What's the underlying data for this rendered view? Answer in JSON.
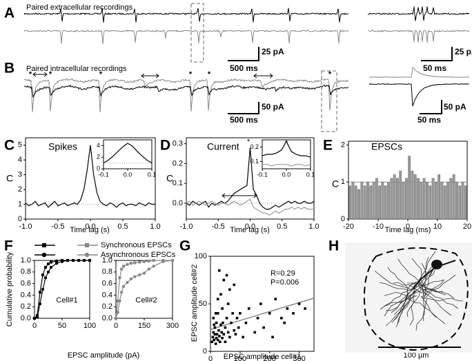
{
  "panels": [
    "A",
    "B",
    "C",
    "D",
    "E",
    "F",
    "G",
    "H"
  ],
  "recordings": [
    {
      "title": "Paired extracellular reccordings",
      "scale_main": [
        "25 pA",
        "500 ms"
      ],
      "scale_inset": [
        "25 pA",
        "50 ms"
      ]
    },
    {
      "title": "Paired intracellular recordings",
      "event_label": "*",
      "scale_main": [
        "50 pA",
        "500 ms"
      ],
      "scale_inset": [
        "50 pA",
        "50 ms"
      ]
    }
  ],
  "image": {
    "scale_bar": "100 µm"
  },
  "legend": [
    {
      "name": "Synchronous EPSCs",
      "marker": "square",
      "colors": [
        "#000000",
        "#888888"
      ]
    },
    {
      "name": "Asynchronous EPSCs",
      "marker": "circle",
      "colors": [
        "#000000",
        "#888888"
      ]
    }
  ],
  "chart_data": [
    {
      "type": "line",
      "title": "Spikes",
      "ylabel": "C",
      "xlabel": "Time lag (s)",
      "x": [
        -1.0,
        -0.95,
        -0.9,
        -0.85,
        -0.8,
        -0.75,
        -0.7,
        -0.65,
        -0.6,
        -0.55,
        -0.5,
        -0.45,
        -0.4,
        -0.35,
        -0.3,
        -0.25,
        -0.2,
        -0.15,
        -0.1,
        -0.05,
        0,
        0.05,
        0.1,
        0.15,
        0.2,
        0.25,
        0.3,
        0.35,
        0.4,
        0.45,
        0.5,
        0.55,
        0.6,
        0.65,
        0.7,
        0.75,
        0.8,
        0.85,
        0.9,
        0.95,
        1.0
      ],
      "series": [
        {
          "color": "#000000",
          "values": [
            1.1,
            0.9,
            1.0,
            1.2,
            0.9,
            1.0,
            1.1,
            0.8,
            1.0,
            1.2,
            0.9,
            1.0,
            1.1,
            0.9,
            1.0,
            1.1,
            1.0,
            1.3,
            2.0,
            3.3,
            5.0,
            3.0,
            1.8,
            1.2,
            1.0,
            0.9,
            1.1,
            1.0,
            0.8,
            1.0,
            1.1,
            0.9,
            1.0,
            1.0,
            0.9,
            1.1,
            1.0,
            0.9,
            1.1,
            1.0,
            1.0
          ]
        }
      ],
      "reference_line": 1,
      "xlim": [
        -1,
        1
      ],
      "xticks": [
        {
          "value": -1,
          "label": "-1.0"
        },
        -0.5,
        {
          "value": 0,
          "label": "0.0"
        },
        0.5,
        {
          "value": 1,
          "label": "1.0"
        }
      ],
      "ylim": [
        0,
        5.5
      ],
      "yticks": [
        0,
        1,
        2,
        3,
        4,
        5
      ]
    },
    {
      "type": "line",
      "x": [
        -0.1,
        -0.08,
        -0.06,
        -0.04,
        -0.02,
        0,
        0.02,
        0.04,
        0.06,
        0.08,
        0.1
      ],
      "series": [
        {
          "color": "#000000",
          "values": [
            1.0,
            1.5,
            2.2,
            3.0,
            3.8,
            4.4,
            3.9,
            3.0,
            2.2,
            1.5,
            1.0
          ]
        }
      ],
      "reference_line": 1,
      "xlim": [
        -0.1,
        0.1
      ],
      "xticks": [
        -0.1,
        {
          "value": 0,
          "label": "0.0"
        },
        0.1
      ],
      "ylim": [
        0,
        5
      ],
      "yticks": [
        0,
        2,
        4
      ]
    },
    {
      "type": "line",
      "title": "Current",
      "ylabel": "C",
      "xlabel": "Time lag (s)",
      "annotation": "*",
      "x": [
        -1.0,
        -0.95,
        -0.9,
        -0.85,
        -0.8,
        -0.75,
        -0.7,
        -0.65,
        -0.6,
        -0.55,
        -0.5,
        -0.45,
        -0.4,
        -0.35,
        -0.3,
        -0.25,
        -0.2,
        -0.15,
        -0.1,
        -0.05,
        0,
        0.05,
        0.1,
        0.15,
        0.2,
        0.25,
        0.3,
        0.35,
        0.4,
        0.45,
        0.5,
        0.55,
        0.6,
        0.65,
        0.7,
        0.75,
        0.8,
        0.85,
        0.9,
        0.95,
        1.0
      ],
      "series": [
        {
          "color": "#000000",
          "values": [
            0.0,
            -0.01,
            0.01,
            0.0,
            -0.01,
            0.0,
            0.01,
            -0.02,
            0.0,
            -0.01,
            0.0,
            0.01,
            0.0,
            0.01,
            0.03,
            0.05,
            0.06,
            0.07,
            0.08,
            0.09,
            0.28,
            0.07,
            0.04,
            0.0,
            -0.02,
            -0.03,
            -0.03,
            -0.02,
            -0.01,
            -0.02,
            -0.01,
            0.0,
            0.01,
            0.0,
            0.01,
            0.0,
            0.0,
            0.01,
            0.0,
            0.0,
            0.01
          ]
        },
        {
          "color": "#999999",
          "values": [
            0.0,
            0.01,
            -0.01,
            0.0,
            0.01,
            0.0,
            -0.01,
            0.0,
            0.01,
            0.0,
            -0.01,
            0.0,
            0.0,
            -0.01,
            0.0,
            0.01,
            0.0,
            -0.01,
            0.0,
            0.01,
            0.02,
            -0.02,
            -0.03,
            -0.04,
            -0.05,
            -0.05,
            -0.06,
            -0.05,
            -0.04,
            -0.05,
            -0.04,
            -0.03,
            -0.03,
            -0.02,
            -0.03,
            -0.02,
            -0.03,
            -0.02,
            -0.03,
            -0.03,
            -0.03
          ]
        }
      ],
      "reference_line": 0,
      "xlim": [
        -1,
        1
      ],
      "xticks": [
        {
          "value": -1,
          "label": "-1.0"
        },
        -0.5,
        {
          "value": 0,
          "label": "0.0"
        },
        0.5,
        {
          "value": 1,
          "label": "1.0"
        }
      ],
      "ylim": [
        -0.08,
        0.33
      ],
      "yticks": [
        {
          "value": 0,
          "label": "0.0"
        },
        0.1,
        0.2,
        0.3
      ]
    },
    {
      "type": "line",
      "annotation": "*",
      "x": [
        -0.1,
        -0.08,
        -0.06,
        -0.04,
        -0.02,
        0,
        0.02,
        0.04,
        0.06,
        0.08,
        0.1
      ],
      "series": [
        {
          "color": "#000000",
          "values": [
            0.14,
            0.15,
            0.15,
            0.16,
            0.18,
            0.24,
            0.17,
            0.15,
            0.14,
            0.14,
            0.13
          ]
        },
        {
          "color": "#999999",
          "values": [
            0.08,
            0.08,
            0.07,
            0.08,
            0.08,
            0.08,
            0.07,
            0.08,
            0.08,
            0.07,
            0.08
          ]
        }
      ],
      "xlim": [
        -0.1,
        0.1
      ],
      "xticks": [
        -0.1,
        {
          "value": 0,
          "label": "0.0"
        },
        0.1
      ],
      "ylim": [
        0.05,
        0.25
      ],
      "yticks": [
        0.1,
        0.2
      ]
    },
    {
      "type": "histogram",
      "title": "EPSCs",
      "ylabel": "C",
      "xlabel": "Time lag (ms)",
      "color": "#999999",
      "bins": [
        -20,
        -19,
        -18,
        -17,
        -16,
        -15,
        -14,
        -13,
        -12,
        -11,
        -10,
        -9,
        -8,
        -7,
        -6,
        -5,
        -4,
        -3,
        -2,
        -1,
        0,
        1,
        2,
        3,
        4,
        5,
        6,
        7,
        8,
        9,
        10,
        11,
        12,
        13,
        14,
        15,
        16,
        17,
        18,
        19,
        20
      ],
      "values": [
        0.9,
        1.0,
        0.9,
        0.8,
        1.0,
        0.9,
        1.0,
        0.9,
        1.0,
        1.1,
        0.9,
        1.0,
        0.9,
        1.0,
        1.1,
        1.2,
        1.1,
        1.3,
        1.0,
        1.1,
        1.7,
        1.3,
        1.2,
        1.1,
        1.0,
        1.1,
        1.0,
        0.9,
        1.1,
        1.0,
        1.2,
        1.0,
        0.9,
        1.0,
        1.1,
        1.2,
        1.0,
        0.9,
        1.0,
        0.9
      ],
      "reference_line": 1,
      "xlim": [
        -20,
        20
      ],
      "xticks": [
        -20,
        -10,
        0,
        10,
        20
      ],
      "ylim": [
        0,
        2.1
      ],
      "yticks": [
        0,
        1,
        2
      ]
    },
    {
      "type": "line",
      "ylabel": "Cumulative probability",
      "xlabel": "EPSC amplitude (pA)",
      "annotation": "Cell#1",
      "x": [
        0,
        5,
        10,
        15,
        20,
        25,
        30,
        40,
        50,
        60,
        70,
        80,
        90,
        100
      ],
      "series": [
        {
          "color": "#000000",
          "marker": "square",
          "values": [
            0,
            0.05,
            0.45,
            0.75,
            0.88,
            0.94,
            0.97,
            0.99,
            1,
            1,
            1,
            1,
            1,
            1
          ]
        },
        {
          "color": "#000000",
          "marker": "circle",
          "values": [
            0,
            0.02,
            0.25,
            0.5,
            0.7,
            0.8,
            0.88,
            0.95,
            0.98,
            1,
            1,
            1,
            1,
            1
          ]
        }
      ],
      "xlim": [
        0,
        100
      ],
      "xticks": [
        0,
        50,
        100
      ],
      "ylim": [
        0,
        1
      ],
      "yticks": [
        {
          "value": 0,
          "label": "0.0"
        },
        0.2,
        0.4,
        0.6,
        0.8,
        {
          "value": 1,
          "label": "1.0"
        }
      ]
    },
    {
      "type": "line",
      "annotation": "Cell#2",
      "x": [
        0,
        10,
        20,
        30,
        40,
        60,
        80,
        100,
        125,
        150,
        175,
        200,
        250,
        300
      ],
      "series": [
        {
          "color": "#888888",
          "marker": "square",
          "values": [
            0,
            0.3,
            0.7,
            0.85,
            0.9,
            0.93,
            0.95,
            0.96,
            0.97,
            0.98,
            0.99,
            1,
            1,
            1
          ]
        },
        {
          "color": "#888888",
          "marker": "circle",
          "values": [
            0,
            0.1,
            0.3,
            0.45,
            0.55,
            0.62,
            0.68,
            0.72,
            0.75,
            0.78,
            0.85,
            0.9,
            0.98,
            1
          ]
        }
      ],
      "xlim": [
        0,
        300
      ],
      "xticks": [
        0,
        150,
        300
      ],
      "ylim": [
        0,
        1
      ],
      "yticks": [
        {
          "value": 0,
          "label": "0.0"
        },
        0.2,
        0.4,
        0.6,
        0.8,
        {
          "value": 1,
          "label": "1.0"
        }
      ]
    },
    {
      "type": "scatter",
      "ylabel": "EPSC amplitude cell#2",
      "xlabel": "EPSC amplitude cell#1",
      "annotations": [
        "R=0.29",
        "P=0.006"
      ],
      "color": "#000000",
      "x": [
        5,
        8,
        10,
        12,
        15,
        15,
        18,
        20,
        20,
        22,
        25,
        25,
        28,
        30,
        30,
        32,
        35,
        35,
        38,
        40,
        40,
        42,
        45,
        45,
        50,
        50,
        55,
        55,
        60,
        60,
        65,
        65,
        70,
        75,
        80,
        80,
        85,
        90,
        95,
        100,
        110,
        120,
        130,
        150,
        160,
        170,
        180,
        200,
        210,
        220,
        240,
        250,
        260,
        280,
        300,
        320,
        10,
        12,
        18,
        25
      ],
      "y": [
        10,
        15,
        20,
        12,
        18,
        25,
        8,
        14,
        30,
        18,
        12,
        40,
        22,
        85,
        16,
        10,
        28,
        60,
        20,
        14,
        45,
        30,
        18,
        75,
        25,
        10,
        35,
        80,
        20,
        50,
        15,
        65,
        30,
        40,
        22,
        70,
        18,
        35,
        25,
        40,
        15,
        30,
        45,
        20,
        35,
        50,
        25,
        40,
        15,
        55,
        35,
        30,
        45,
        40,
        50,
        45,
        35,
        28,
        40,
        55
      ],
      "fit_line": {
        "color": "#888888",
        "x": [
          0,
          350
        ],
        "y": [
          23,
          56
        ]
      },
      "xlim": [
        0,
        350
      ],
      "xticks": [
        0,
        100,
        200,
        300
      ],
      "ylim": [
        0,
        100
      ],
      "yticks": [
        0,
        50,
        100
      ]
    }
  ]
}
